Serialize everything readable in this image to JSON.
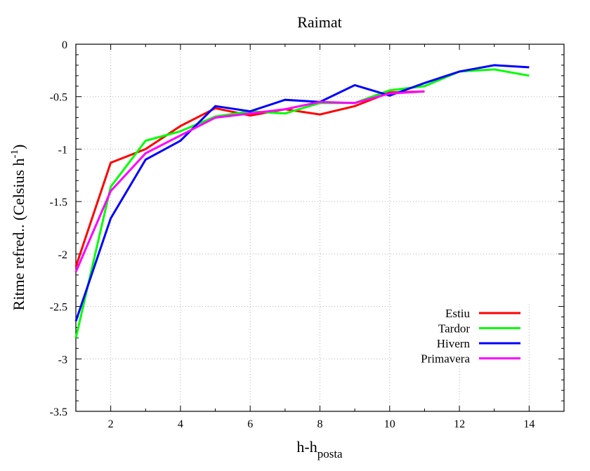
{
  "chart_data": {
    "type": "line",
    "title": "Raimat",
    "xlabel": {
      "main": "h-h",
      "sub": "posta"
    },
    "ylabel": {
      "main": "Ritme refred.. (Celsius h",
      "sup": "-1",
      "close": ")"
    },
    "xlim": [
      1,
      15
    ],
    "ylim": [
      -3.5,
      0
    ],
    "xticks": [
      2,
      4,
      6,
      8,
      10,
      12,
      14
    ],
    "yticks": [
      0,
      -0.5,
      -1,
      -1.5,
      -2,
      -2.5,
      -3,
      -3.5
    ],
    "ytick_labels": [
      "0",
      "-0.5",
      "-1",
      "-1.5",
      "-2",
      "-2.5",
      "-3",
      "-3.5"
    ],
    "grid": true,
    "legend_position": "bottom-right",
    "series": [
      {
        "name": "Estiu",
        "color": "#ff0000",
        "x": [
          1,
          2,
          3,
          4,
          5,
          6,
          7,
          8,
          9,
          10,
          11
        ],
        "y": [
          -2.12,
          -1.13,
          -1.0,
          -0.78,
          -0.61,
          -0.68,
          -0.62,
          -0.67,
          -0.59,
          -0.46,
          -0.45
        ]
      },
      {
        "name": "Tardor",
        "color": "#00ff00",
        "x": [
          1,
          2,
          3,
          4,
          5,
          6,
          7,
          8,
          9,
          10,
          11,
          12,
          13,
          14
        ],
        "y": [
          -2.8,
          -1.36,
          -0.92,
          -0.83,
          -0.69,
          -0.64,
          -0.66,
          -0.56,
          -0.56,
          -0.44,
          -0.4,
          -0.26,
          -0.24,
          -0.3
        ]
      },
      {
        "name": "Hivern",
        "color": "#0000ff",
        "x": [
          1,
          2,
          3,
          4,
          5,
          6,
          7,
          8,
          9,
          10,
          11,
          12,
          13,
          14
        ],
        "y": [
          -2.64,
          -1.66,
          -1.1,
          -0.92,
          -0.59,
          -0.64,
          -0.53,
          -0.55,
          -0.39,
          -0.49,
          -0.37,
          -0.26,
          -0.2,
          -0.22
        ]
      },
      {
        "name": "Primavera",
        "color": "#ff00ff",
        "x": [
          1,
          2,
          3,
          4,
          5,
          6,
          7,
          8,
          9,
          10,
          11
        ],
        "y": [
          -2.17,
          -1.4,
          -1.04,
          -0.87,
          -0.7,
          -0.66,
          -0.62,
          -0.55,
          -0.56,
          -0.47,
          -0.45
        ]
      }
    ]
  }
}
